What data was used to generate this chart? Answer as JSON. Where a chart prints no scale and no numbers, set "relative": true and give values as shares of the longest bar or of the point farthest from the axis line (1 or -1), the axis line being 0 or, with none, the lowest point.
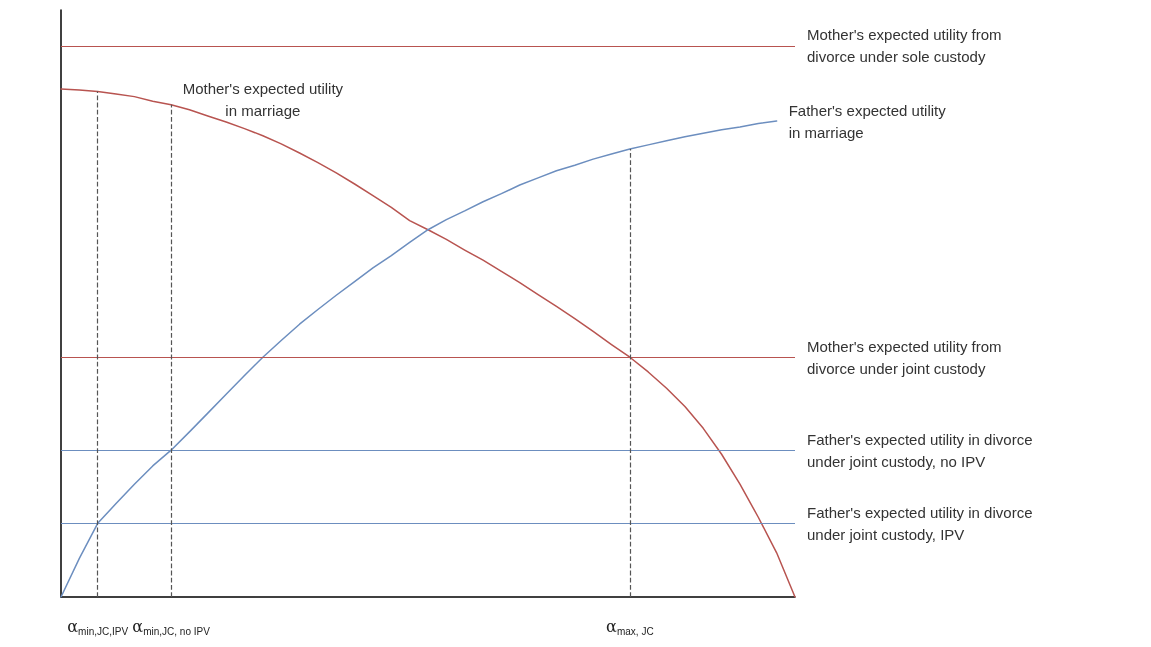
{
  "chart_data": {
    "type": "line",
    "relative": true,
    "categories": [
      null,
      null,
      "α$_{min,JC,IPV}$",
      null,
      null,
      null,
      "α$_{min,JC, no IPV}$",
      null,
      null,
      null,
      null,
      null,
      null,
      null,
      null,
      null,
      null,
      null,
      null,
      null,
      null,
      null,
      null,
      null,
      null,
      null,
      null,
      null,
      null,
      null,
      null,
      "α$_{max, JC}$",
      null,
      null,
      null,
      null,
      null,
      null,
      null,
      null,
      null
    ],
    "series": [
      {
        "name": "Mother's expected utility\nin marriage",
        "color": "#b85450",
        "values": [
          1,
          0.998,
          0.995,
          0.99,
          0.985,
          0.976,
          0.969,
          0.959,
          0.947,
          0.935,
          0.922,
          0.908,
          0.892,
          0.874,
          0.855,
          0.835,
          0.813,
          0.79,
          0.767,
          0.741,
          0.723,
          0.704,
          0.683,
          0.663,
          0.641,
          0.619,
          0.595,
          0.572,
          0.548,
          0.523,
          0.497,
          0.472,
          0.443,
          0.411,
          0.375,
          0.332,
          0.281,
          0.222,
          0.157,
          0.087,
          0
        ]
      },
      {
        "name": "Father's expected utility\nin marriage",
        "color": "#6c8ebf",
        "values": [
          0,
          0.076,
          0.145,
          0.184,
          0.222,
          0.258,
          0.289,
          0.325,
          0.362,
          0.399,
          0.436,
          0.472,
          0.505,
          0.537,
          0.566,
          0.594,
          0.621,
          0.648,
          0.672,
          0.698,
          0.723,
          0.743,
          0.76,
          0.778,
          0.794,
          0.811,
          0.825,
          0.839,
          0.85,
          0.862,
          0.872,
          0.882,
          0.89,
          0.898,
          0.906,
          0.913,
          0.92,
          0.925,
          0.932,
          0.937,
          null
        ]
      }
    ],
    "ref_lines": [
      {
        "axis": "y",
        "value": 1.085,
        "label": "Mother's expected utility from\ndivorce under sole custody",
        "color": "#b85450"
      },
      {
        "axis": "y",
        "value": 0.472,
        "label": "Mother's expected utility from\ndivorce under joint custody",
        "color": "#b85450"
      },
      {
        "axis": "y",
        "value": 0.289,
        "label": "Father's expected utility in divorce\nunder joint custody, no IPV",
        "color": "#6c8ebf"
      },
      {
        "axis": "y",
        "value": 0.145,
        "label": "Father's expected utility in divorce\nunder joint custody, IPV",
        "color": "#6c8ebf"
      },
      {
        "axis": "x",
        "value": "α$_{min,JC,IPV}$",
        "color": "#555555",
        "line_style": "dashed"
      },
      {
        "axis": "x",
        "value": "α$_{min,JC, no IPV}$",
        "color": "#555555",
        "line_style": "dashed"
      },
      {
        "axis": "x",
        "value": "α$_{max, JC}$",
        "color": "#555555",
        "line_style": "dashed"
      }
    ],
    "marker": "none",
    "line_style": "solid",
    "grid": false
  }
}
